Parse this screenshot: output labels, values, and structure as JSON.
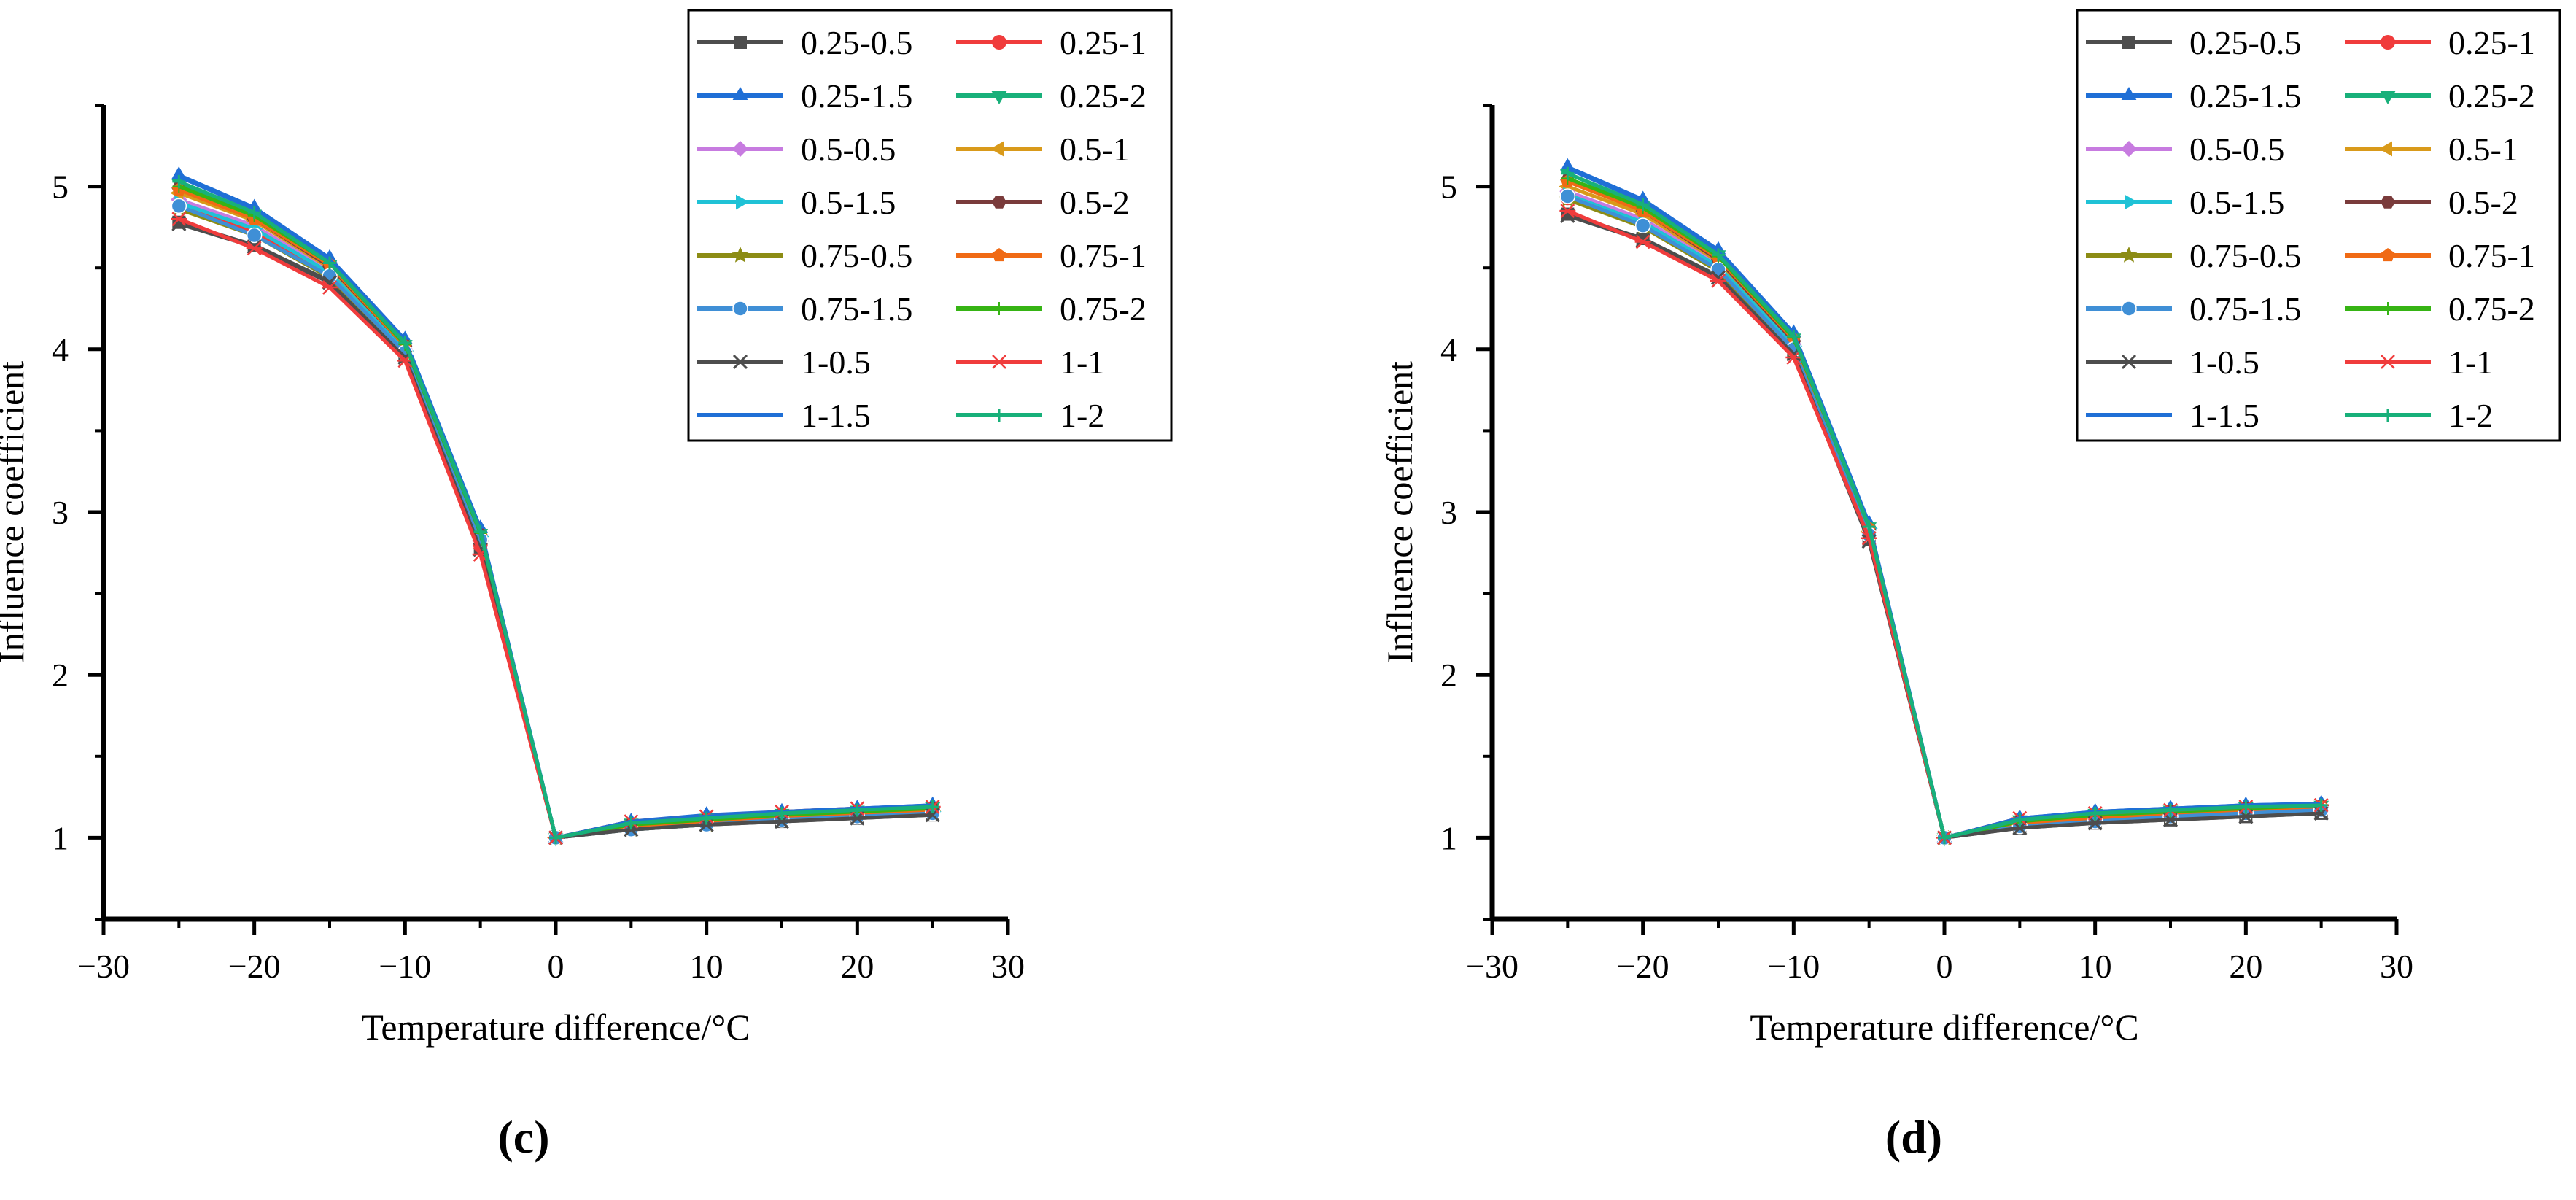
{
  "figure": {
    "panels_text": [
      "(c)",
      "(d)"
    ]
  },
  "legend_entries": [
    {
      "name": "0.25-0.5",
      "color": "#4d4d4d",
      "marker": "square"
    },
    {
      "name": "0.25-1",
      "color": "#f03c3c",
      "marker": "circle"
    },
    {
      "name": "0.25-1.5",
      "color": "#1f6fd6",
      "marker": "triangle-up"
    },
    {
      "name": "0.25-2",
      "color": "#18b07a",
      "marker": "triangle-down"
    },
    {
      "name": "0.5-0.5",
      "color": "#c77be0",
      "marker": "diamond"
    },
    {
      "name": "0.5-1",
      "color": "#d99a1a",
      "marker": "triangle-left"
    },
    {
      "name": "0.5-1.5",
      "color": "#1fc2d6",
      "marker": "triangle-right"
    },
    {
      "name": "0.5-2",
      "color": "#7a3b3b",
      "marker": "hexagon"
    },
    {
      "name": "0.75-0.5",
      "color": "#8c8c14",
      "marker": "star"
    },
    {
      "name": "0.75-1",
      "color": "#f06a14",
      "marker": "pentagon"
    },
    {
      "name": "0.75-1.5",
      "color": "#3f8fd6",
      "marker": "ball"
    },
    {
      "name": "0.75-2",
      "color": "#36b414",
      "marker": "plus-thin"
    },
    {
      "name": "1-0.5",
      "color": "#4d4d4d",
      "marker": "x"
    },
    {
      "name": "1-1",
      "color": "#f03c3c",
      "marker": "asterisk"
    },
    {
      "name": "1-1.5",
      "color": "#1f6fd6",
      "marker": "none"
    },
    {
      "name": "1-2",
      "color": "#18b07a",
      "marker": "plus"
    }
  ],
  "chart_data": [
    {
      "type": "line",
      "panel_label": "c",
      "xlabel": "Temperature difference/°C",
      "ylabel": "Influence coefficient",
      "xlim": [
        -30,
        30
      ],
      "ylim": [
        0.5,
        5.5
      ],
      "xticks": [
        -30,
        -20,
        -10,
        0,
        10,
        20,
        30
      ],
      "xtick_labels": [
        "−30",
        "−20",
        "−10",
        "0",
        "10",
        "20",
        "30"
      ],
      "yticks": [
        1,
        2,
        3,
        4,
        5
      ],
      "ytick_labels": [
        "1",
        "2",
        "3",
        "4",
        "5"
      ],
      "legend_position": "top-right",
      "x": [
        -25,
        -20,
        -15,
        -10,
        -5,
        0,
        5,
        10,
        15,
        20,
        25
      ],
      "series": [
        {
          "name": "0.25-0.5",
          "values": [
            4.78,
            4.64,
            4.42,
            3.96,
            2.78,
            1.0,
            1.05,
            1.08,
            1.1,
            1.12,
            1.14
          ]
        },
        {
          "name": "0.25-1",
          "values": [
            4.88,
            4.72,
            4.46,
            3.98,
            2.8,
            1.0,
            1.06,
            1.09,
            1.11,
            1.13,
            1.15
          ]
        },
        {
          "name": "0.25-1.5",
          "values": [
            5.07,
            4.87,
            4.56,
            4.06,
            2.9,
            1.0,
            1.1,
            1.14,
            1.16,
            1.18,
            1.2
          ]
        },
        {
          "name": "0.25-2",
          "values": [
            5.02,
            4.83,
            4.52,
            4.03,
            2.87,
            1.0,
            1.09,
            1.12,
            1.15,
            1.17,
            1.19
          ]
        },
        {
          "name": "0.5-0.5",
          "values": [
            4.92,
            4.76,
            4.48,
            4.0,
            2.82,
            1.0,
            1.07,
            1.1,
            1.12,
            1.14,
            1.16
          ]
        },
        {
          "name": "0.5-1",
          "values": [
            4.96,
            4.79,
            4.5,
            4.01,
            2.84,
            1.0,
            1.07,
            1.1,
            1.13,
            1.15,
            1.17
          ]
        },
        {
          "name": "0.5-1.5",
          "values": [
            4.9,
            4.74,
            4.47,
            3.99,
            2.85,
            1.0,
            1.06,
            1.09,
            1.12,
            1.14,
            1.16
          ]
        },
        {
          "name": "0.5-2",
          "values": [
            4.99,
            4.8,
            4.51,
            4.02,
            2.86,
            1.0,
            1.08,
            1.11,
            1.14,
            1.16,
            1.18
          ]
        },
        {
          "name": "0.75-0.5",
          "values": [
            4.86,
            4.7,
            4.44,
            3.97,
            2.81,
            1.0,
            1.05,
            1.08,
            1.11,
            1.13,
            1.15
          ]
        },
        {
          "name": "0.75-1",
          "values": [
            4.98,
            4.8,
            4.52,
            4.02,
            2.85,
            1.0,
            1.07,
            1.1,
            1.13,
            1.15,
            1.17
          ]
        },
        {
          "name": "0.75-1.5",
          "values": [
            4.88,
            4.7,
            4.45,
            3.98,
            2.83,
            1.0,
            1.05,
            1.08,
            1.11,
            1.13,
            1.15
          ]
        },
        {
          "name": "0.75-2",
          "values": [
            5.0,
            4.82,
            4.53,
            4.03,
            2.87,
            1.0,
            1.08,
            1.11,
            1.14,
            1.16,
            1.18
          ]
        },
        {
          "name": "1-0.5",
          "values": [
            4.77,
            4.63,
            4.41,
            3.95,
            2.77,
            1.0,
            1.05,
            1.08,
            1.1,
            1.12,
            1.14
          ]
        },
        {
          "name": "1-1",
          "values": [
            4.8,
            4.62,
            4.38,
            3.93,
            2.74,
            1.0,
            1.1,
            1.13,
            1.16,
            1.18,
            1.19
          ]
        },
        {
          "name": "1-1.5",
          "values": [
            5.06,
            4.86,
            4.55,
            4.05,
            2.89,
            1.0,
            1.1,
            1.13,
            1.16,
            1.18,
            1.2
          ]
        },
        {
          "name": "1-2",
          "values": [
            5.03,
            4.84,
            4.53,
            4.04,
            2.88,
            1.0,
            1.09,
            1.12,
            1.15,
            1.17,
            1.19
          ]
        }
      ]
    },
    {
      "type": "line",
      "panel_label": "d",
      "xlabel": "Temperature difference/°C",
      "ylabel": "Influence coefficient",
      "xlim": [
        -30,
        30
      ],
      "ylim": [
        0.5,
        5.5
      ],
      "xticks": [
        -30,
        -20,
        -10,
        0,
        10,
        20,
        30
      ],
      "xtick_labels": [
        "−30",
        "−20",
        "−10",
        "0",
        "10",
        "20",
        "30"
      ],
      "yticks": [
        1,
        2,
        3,
        4,
        5
      ],
      "ytick_labels": [
        "1",
        "2",
        "3",
        "4",
        "5"
      ],
      "legend_position": "top-right",
      "x": [
        -25,
        -20,
        -15,
        -10,
        -5,
        0,
        5,
        10,
        15,
        20,
        25
      ],
      "series": [
        {
          "name": "0.25-0.5",
          "values": [
            4.83,
            4.68,
            4.45,
            3.98,
            2.83,
            1.0,
            1.06,
            1.09,
            1.11,
            1.13,
            1.15
          ]
        },
        {
          "name": "0.25-1",
          "values": [
            4.93,
            4.77,
            4.5,
            4.01,
            2.86,
            1.0,
            1.08,
            1.11,
            1.13,
            1.15,
            1.17
          ]
        },
        {
          "name": "0.25-1.5",
          "values": [
            5.12,
            4.92,
            4.61,
            4.1,
            2.93,
            1.0,
            1.12,
            1.16,
            1.18,
            1.2,
            1.21
          ]
        },
        {
          "name": "0.25-2",
          "values": [
            5.08,
            4.88,
            4.58,
            4.07,
            2.91,
            1.0,
            1.11,
            1.15,
            1.17,
            1.19,
            1.2
          ]
        },
        {
          "name": "0.5-0.5",
          "values": [
            4.97,
            4.8,
            4.52,
            4.03,
            2.87,
            1.0,
            1.08,
            1.12,
            1.14,
            1.16,
            1.18
          ]
        },
        {
          "name": "0.5-1",
          "values": [
            5.0,
            4.83,
            4.54,
            4.04,
            2.88,
            1.0,
            1.09,
            1.12,
            1.15,
            1.17,
            1.18
          ]
        },
        {
          "name": "0.5-1.5",
          "values": [
            4.95,
            4.78,
            4.51,
            4.02,
            2.9,
            1.0,
            1.08,
            1.11,
            1.14,
            1.16,
            1.17
          ]
        },
        {
          "name": "0.5-2",
          "values": [
            5.04,
            4.85,
            4.55,
            4.05,
            2.89,
            1.0,
            1.1,
            1.13,
            1.16,
            1.18,
            1.19
          ]
        },
        {
          "name": "0.75-0.5",
          "values": [
            4.92,
            4.75,
            4.48,
            4.0,
            2.85,
            1.0,
            1.07,
            1.1,
            1.13,
            1.15,
            1.16
          ]
        },
        {
          "name": "0.75-1",
          "values": [
            5.03,
            4.85,
            4.56,
            4.06,
            2.9,
            1.0,
            1.09,
            1.12,
            1.15,
            1.17,
            1.19
          ]
        },
        {
          "name": "0.75-1.5",
          "values": [
            4.94,
            4.76,
            4.49,
            4.0,
            2.86,
            1.0,
            1.07,
            1.1,
            1.13,
            1.15,
            1.17
          ]
        },
        {
          "name": "0.75-2",
          "values": [
            5.05,
            4.87,
            4.57,
            4.07,
            2.91,
            1.0,
            1.1,
            1.14,
            1.16,
            1.18,
            1.2
          ]
        },
        {
          "name": "1-0.5",
          "values": [
            4.82,
            4.67,
            4.44,
            3.97,
            2.82,
            1.0,
            1.06,
            1.09,
            1.11,
            1.13,
            1.15
          ]
        },
        {
          "name": "1-1",
          "values": [
            4.85,
            4.66,
            4.42,
            3.95,
            2.84,
            1.0,
            1.12,
            1.15,
            1.17,
            1.19,
            1.2
          ]
        },
        {
          "name": "1-1.5",
          "values": [
            5.11,
            4.91,
            4.6,
            4.09,
            2.92,
            1.0,
            1.12,
            1.16,
            1.18,
            1.2,
            1.21
          ]
        },
        {
          "name": "1-2",
          "values": [
            5.08,
            4.89,
            4.58,
            4.08,
            2.91,
            1.0,
            1.11,
            1.15,
            1.17,
            1.19,
            1.2
          ]
        }
      ]
    }
  ]
}
